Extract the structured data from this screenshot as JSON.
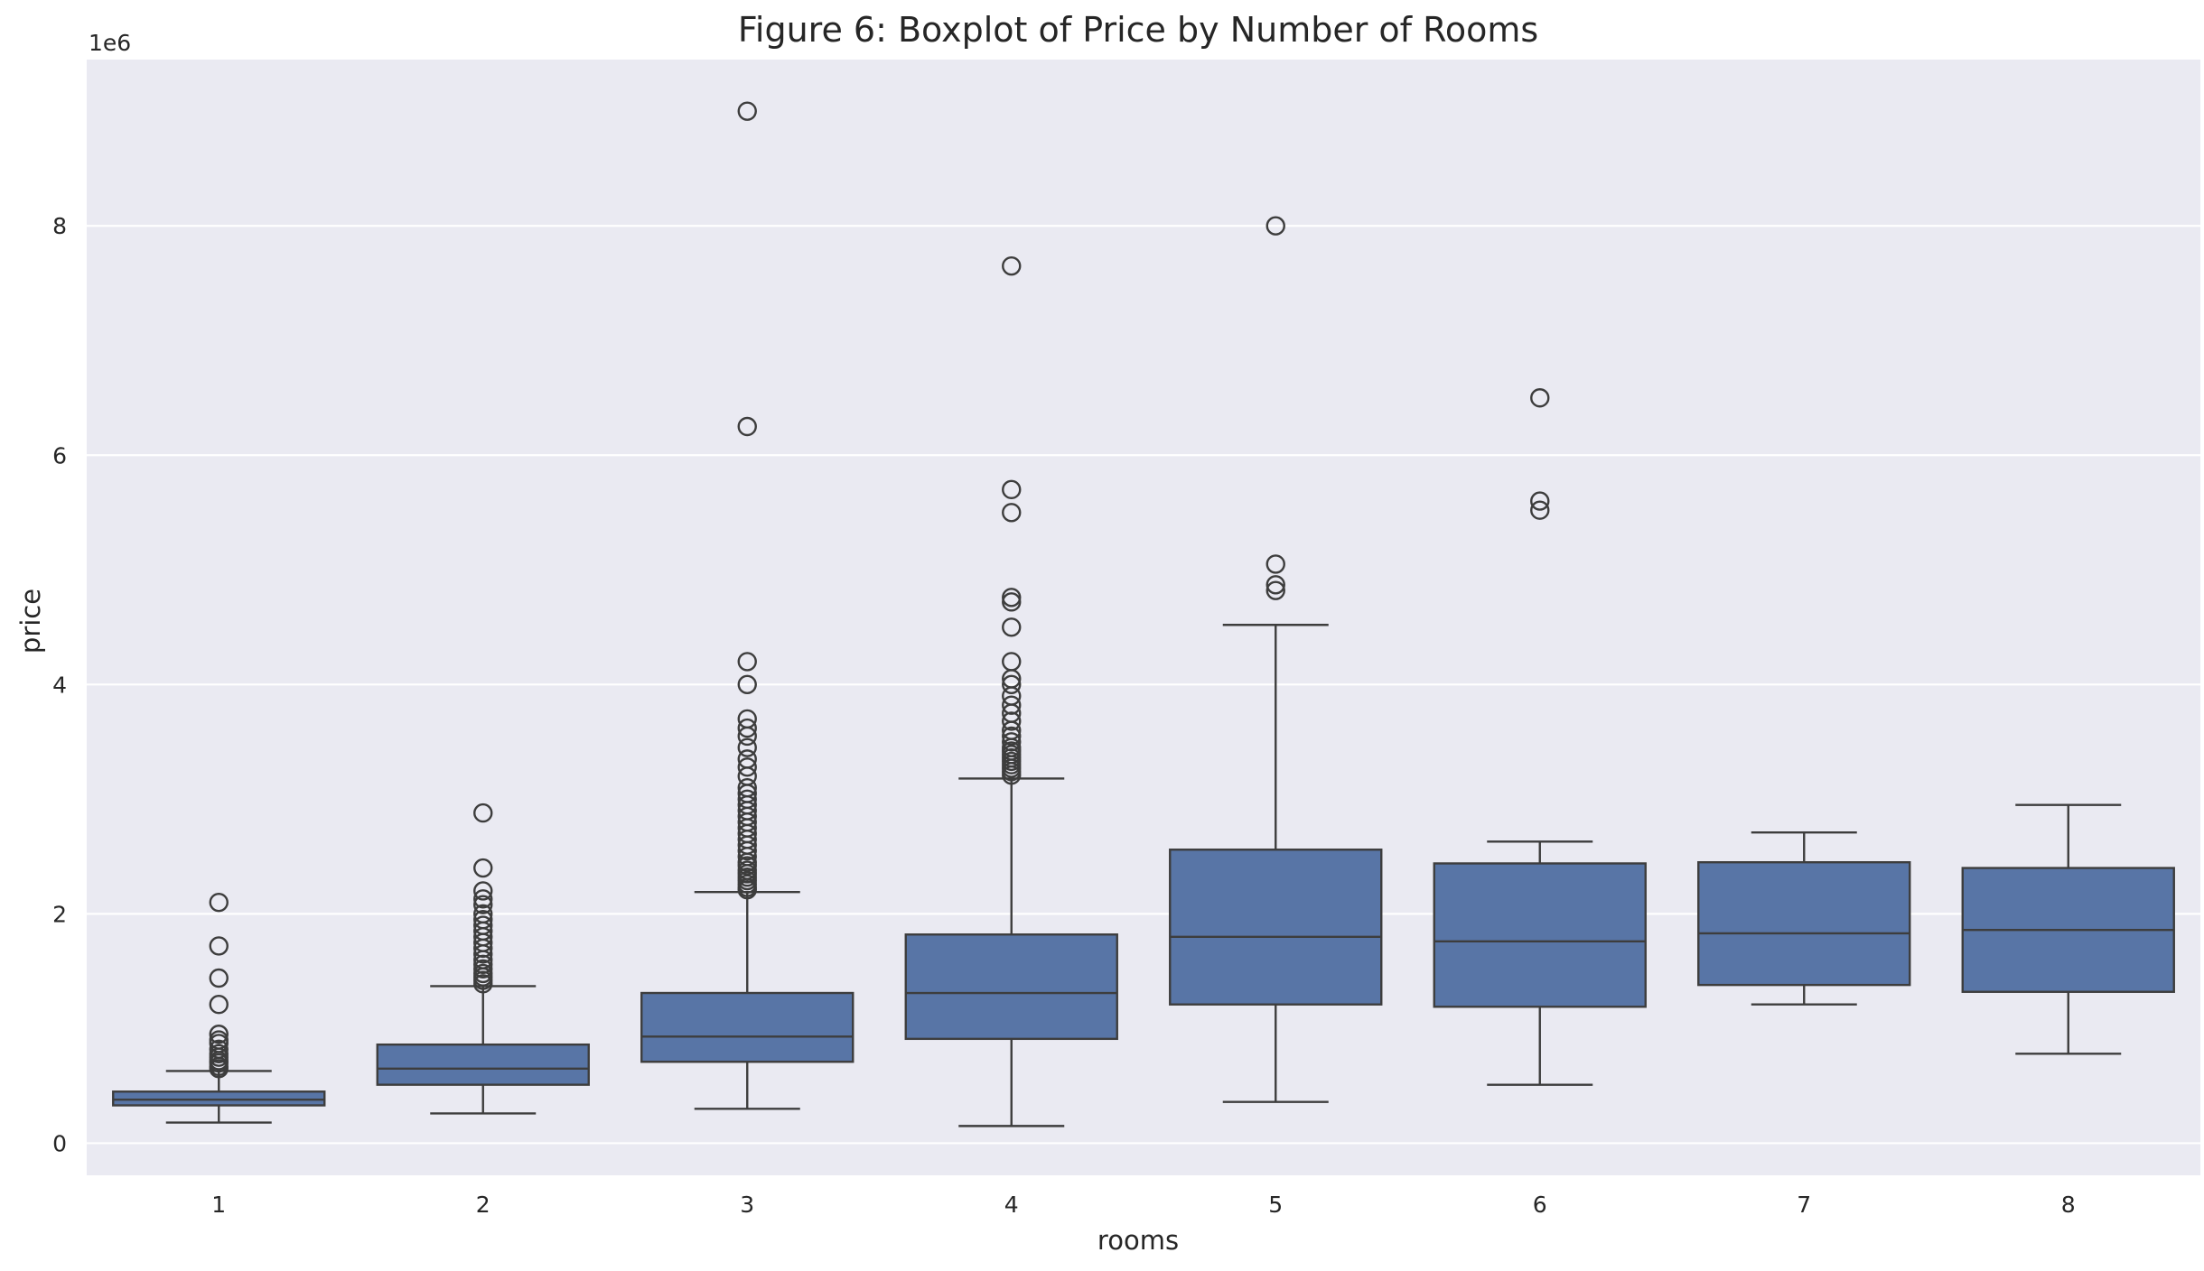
{
  "chart_data": {
    "type": "boxplot",
    "title": "Figure 6: Boxplot of Price by Number of Rooms",
    "xlabel": "rooms",
    "ylabel": "price",
    "y_offset_label": "1e6",
    "ylim": [
      -0.28,
      9.45
    ],
    "yticks": [
      0,
      2,
      4,
      6,
      8
    ],
    "ytick_labels": [
      "0",
      "2",
      "4",
      "6",
      "8"
    ],
    "grid": true,
    "colors": {
      "box_fill": "#5875a6",
      "line": "#3d3d3d",
      "background": "#eaeaf2",
      "grid": "#ffffff"
    },
    "categories": [
      "1",
      "2",
      "3",
      "4",
      "5",
      "6",
      "7",
      "8"
    ],
    "boxes": [
      {
        "whisker_low": 0.18,
        "q1": 0.33,
        "median": 0.38,
        "q3": 0.45,
        "whisker_high": 0.63,
        "outliers": [
          2.1,
          1.72,
          1.44,
          1.21,
          0.95,
          0.9,
          0.87,
          0.82,
          0.78,
          0.75,
          0.72,
          0.7,
          0.67,
          0.65
        ]
      },
      {
        "whisker_low": 0.26,
        "q1": 0.51,
        "median": 0.65,
        "q3": 0.86,
        "whisker_high": 1.37,
        "outliers": [
          2.88,
          2.4,
          2.2,
          2.13,
          2.08,
          2.0,
          1.95,
          1.9,
          1.85,
          1.8,
          1.75,
          1.7,
          1.65,
          1.6,
          1.56,
          1.52,
          1.48,
          1.45,
          1.42,
          1.39
        ]
      },
      {
        "whisker_low": 0.3,
        "q1": 0.71,
        "median": 0.93,
        "q3": 1.31,
        "whisker_high": 2.19,
        "outliers": [
          9.0,
          6.25,
          4.2,
          4.0,
          3.7,
          3.62,
          3.55,
          3.45,
          3.35,
          3.28,
          3.2,
          3.1,
          3.05,
          3.0,
          2.95,
          2.9,
          2.85,
          2.8,
          2.75,
          2.7,
          2.65,
          2.6,
          2.55,
          2.5,
          2.45,
          2.42,
          2.38,
          2.35,
          2.32,
          2.29,
          2.26,
          2.23,
          2.21
        ]
      },
      {
        "whisker_low": 0.15,
        "q1": 0.91,
        "median": 1.31,
        "q3": 1.82,
        "whisker_high": 3.18,
        "outliers": [
          7.65,
          5.7,
          5.5,
          4.76,
          4.72,
          4.5,
          4.2,
          4.05,
          4.0,
          3.9,
          3.82,
          3.75,
          3.68,
          3.6,
          3.55,
          3.5,
          3.45,
          3.42,
          3.39,
          3.36,
          3.33,
          3.3,
          3.27,
          3.24,
          3.21
        ]
      },
      {
        "whisker_low": 0.36,
        "q1": 1.21,
        "median": 1.8,
        "q3": 2.56,
        "whisker_high": 4.52,
        "outliers": [
          8.0,
          5.05,
          4.87,
          4.82
        ]
      },
      {
        "whisker_low": 0.51,
        "q1": 1.19,
        "median": 1.76,
        "q3": 2.44,
        "whisker_high": 2.63,
        "outliers": [
          6.5,
          5.6,
          5.52
        ]
      },
      {
        "whisker_low": 1.21,
        "q1": 1.38,
        "median": 1.83,
        "q3": 2.45,
        "whisker_high": 2.71,
        "outliers": []
      },
      {
        "whisker_low": 0.78,
        "q1": 1.32,
        "median": 1.86,
        "q3": 2.4,
        "whisker_high": 2.95,
        "outliers": []
      }
    ]
  }
}
